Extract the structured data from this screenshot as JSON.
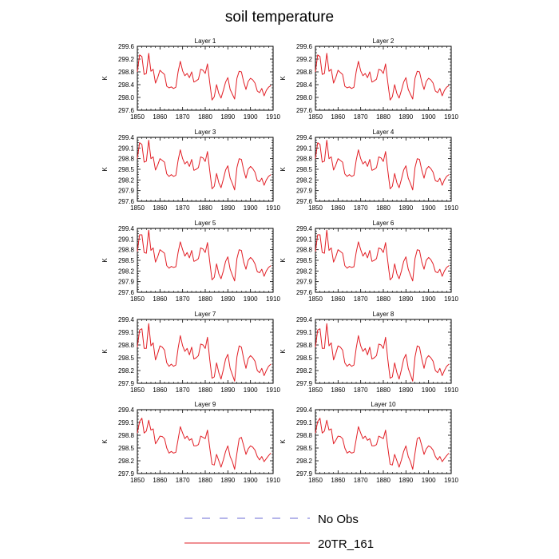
{
  "title": "soil temperature",
  "legend": [
    {
      "label": "No Obs",
      "color": "#6b6bd6",
      "style": "dashed"
    },
    {
      "label": "20TR_161",
      "color": "#e21f26",
      "style": "solid"
    }
  ],
  "colors": {
    "line": "#e21f26",
    "axis": "#000000",
    "dash": "#6b6bd6"
  },
  "chart_data": [
    {
      "type": "line",
      "title": "Layer 1",
      "ylabel": "K",
      "xlim": [
        1850,
        1910
      ],
      "ylim": [
        297.6,
        299.6
      ],
      "xticks": [
        1850,
        1860,
        1870,
        1880,
        1890,
        1900,
        1910
      ],
      "yticks": [
        297.6,
        298.0,
        298.4,
        298.8,
        299.2,
        299.6
      ],
      "ytick_labels": [
        "297.6",
        "298.0",
        "298.4",
        "298.8",
        "299.2",
        "299.6"
      ],
      "series": [
        {
          "name": "20TR_161",
          "x_start": 1850,
          "x_step": 1,
          "values": [
            298.8,
            299.33,
            299.28,
            298.72,
            298.75,
            299.38,
            298.82,
            298.88,
            298.45,
            298.62,
            298.85,
            298.78,
            298.72,
            298.35,
            298.3,
            298.33,
            298.28,
            298.32,
            298.8,
            299.13,
            298.83,
            298.68,
            298.75,
            298.62,
            298.8,
            298.48,
            298.52,
            298.57,
            298.88,
            298.85,
            298.75,
            299.05,
            298.45,
            297.92,
            298.02,
            298.4,
            298.12,
            297.98,
            298.22,
            298.48,
            298.62,
            298.25,
            298.1,
            297.95,
            298.6,
            298.82,
            298.8,
            298.48,
            298.25,
            298.5,
            298.6,
            298.55,
            298.45,
            298.2,
            298.15,
            298.28,
            298.05,
            298.22,
            298.32,
            298.37
          ]
        }
      ]
    },
    {
      "type": "line",
      "title": "Layer 2",
      "ylabel": "K",
      "xlim": [
        1850,
        1910
      ],
      "ylim": [
        297.6,
        299.6
      ],
      "xticks": [
        1850,
        1860,
        1870,
        1880,
        1890,
        1900,
        1910
      ],
      "yticks": [
        297.6,
        298.0,
        298.4,
        298.8,
        299.2,
        299.6
      ],
      "ytick_labels": [
        "297.6",
        "298.0",
        "298.4",
        "298.8",
        "299.2",
        "299.6"
      ],
      "series": [
        {
          "name": "20TR_161",
          "x_start": 1850,
          "x_step": 1,
          "values": [
            298.8,
            299.33,
            299.28,
            298.72,
            298.75,
            299.38,
            298.82,
            298.88,
            298.45,
            298.62,
            298.85,
            298.78,
            298.72,
            298.35,
            298.3,
            298.33,
            298.28,
            298.32,
            298.8,
            299.13,
            298.83,
            298.68,
            298.75,
            298.62,
            298.8,
            298.48,
            298.52,
            298.57,
            298.88,
            298.85,
            298.75,
            299.05,
            298.45,
            297.92,
            298.02,
            298.4,
            298.12,
            297.98,
            298.22,
            298.48,
            298.62,
            298.25,
            298.1,
            297.95,
            298.6,
            298.82,
            298.8,
            298.48,
            298.25,
            298.5,
            298.6,
            298.55,
            298.45,
            298.2,
            298.15,
            298.28,
            298.05,
            298.22,
            298.32,
            298.37
          ]
        }
      ]
    },
    {
      "type": "line",
      "title": "Layer 3",
      "ylabel": "K",
      "xlim": [
        1850,
        1910
      ],
      "ylim": [
        297.6,
        299.4
      ],
      "xticks": [
        1850,
        1860,
        1870,
        1880,
        1890,
        1900,
        1910
      ],
      "yticks": [
        297.6,
        297.9,
        298.2,
        298.5,
        298.8,
        299.1,
        299.4
      ],
      "ytick_labels": [
        "297.6",
        "297.9",
        "298.2",
        "298.5",
        "298.8",
        "299.1",
        "299.4"
      ],
      "series": [
        {
          "name": "20TR_161",
          "x_start": 1850,
          "x_step": 1,
          "values": [
            298.8,
            299.25,
            299.2,
            298.7,
            298.73,
            299.32,
            298.8,
            298.85,
            298.48,
            298.62,
            298.8,
            298.75,
            298.7,
            298.37,
            298.3,
            298.35,
            298.3,
            298.33,
            298.75,
            299.05,
            298.8,
            298.65,
            298.72,
            298.58,
            298.78,
            298.47,
            298.5,
            298.55,
            298.85,
            298.82,
            298.72,
            299.0,
            298.45,
            297.95,
            298.02,
            298.38,
            298.12,
            297.98,
            298.22,
            298.48,
            298.6,
            298.25,
            298.1,
            297.92,
            298.55,
            298.8,
            298.78,
            298.47,
            298.25,
            298.5,
            298.58,
            298.52,
            298.42,
            298.18,
            298.15,
            298.25,
            298.05,
            298.2,
            298.3,
            298.35
          ]
        }
      ]
    },
    {
      "type": "line",
      "title": "Layer 4",
      "ylabel": "K",
      "xlim": [
        1850,
        1910
      ],
      "ylim": [
        297.6,
        299.4
      ],
      "xticks": [
        1850,
        1860,
        1870,
        1880,
        1890,
        1900,
        1910
      ],
      "yticks": [
        297.6,
        297.9,
        298.2,
        298.5,
        298.8,
        299.1,
        299.4
      ],
      "ytick_labels": [
        "297.6",
        "297.9",
        "298.2",
        "298.5",
        "298.8",
        "299.1",
        "299.4"
      ],
      "series": [
        {
          "name": "20TR_161",
          "x_start": 1850,
          "x_step": 1,
          "values": [
            298.8,
            299.25,
            299.2,
            298.7,
            298.73,
            299.32,
            298.8,
            298.85,
            298.48,
            298.62,
            298.8,
            298.75,
            298.7,
            298.37,
            298.3,
            298.35,
            298.3,
            298.33,
            298.75,
            299.05,
            298.8,
            298.65,
            298.72,
            298.58,
            298.78,
            298.47,
            298.5,
            298.55,
            298.85,
            298.82,
            298.72,
            299.0,
            298.45,
            297.95,
            298.02,
            298.38,
            298.12,
            297.98,
            298.22,
            298.48,
            298.6,
            298.25,
            298.1,
            297.92,
            298.55,
            298.8,
            298.78,
            298.47,
            298.25,
            298.5,
            298.58,
            298.52,
            298.42,
            298.18,
            298.15,
            298.25,
            298.05,
            298.2,
            298.3,
            298.35
          ]
        }
      ]
    },
    {
      "type": "line",
      "title": "Layer 5",
      "ylabel": "K",
      "xlim": [
        1850,
        1910
      ],
      "ylim": [
        297.6,
        299.4
      ],
      "xticks": [
        1850,
        1860,
        1870,
        1880,
        1890,
        1900,
        1910
      ],
      "yticks": [
        297.6,
        297.9,
        298.2,
        298.5,
        298.8,
        299.1,
        299.4
      ],
      "ytick_labels": [
        "297.6",
        "297.9",
        "298.2",
        "298.5",
        "298.8",
        "299.1",
        "299.4"
      ],
      "series": [
        {
          "name": "20TR_161",
          "x_start": 1850,
          "x_step": 1,
          "values": [
            298.75,
            299.22,
            299.22,
            298.72,
            298.7,
            299.35,
            298.78,
            298.85,
            298.45,
            298.6,
            298.8,
            298.75,
            298.7,
            298.35,
            298.28,
            298.33,
            298.3,
            298.32,
            298.72,
            299.02,
            298.8,
            298.62,
            298.72,
            298.57,
            298.78,
            298.47,
            298.5,
            298.55,
            298.85,
            298.82,
            298.72,
            299.0,
            298.45,
            297.95,
            298.02,
            298.4,
            298.12,
            297.98,
            298.2,
            298.47,
            298.6,
            298.25,
            298.08,
            297.92,
            298.55,
            298.8,
            298.78,
            298.45,
            298.25,
            298.5,
            298.58,
            298.52,
            298.4,
            298.18,
            298.15,
            298.25,
            298.05,
            298.2,
            298.3,
            298.35
          ]
        }
      ]
    },
    {
      "type": "line",
      "title": "Layer 6",
      "ylabel": "K",
      "xlim": [
        1850,
        1910
      ],
      "ylim": [
        297.6,
        299.4
      ],
      "xticks": [
        1850,
        1860,
        1870,
        1880,
        1890,
        1900,
        1910
      ],
      "yticks": [
        297.6,
        297.9,
        298.2,
        298.5,
        298.8,
        299.1,
        299.4
      ],
      "ytick_labels": [
        "297.6",
        "297.9",
        "298.2",
        "298.5",
        "298.8",
        "299.1",
        "299.4"
      ],
      "series": [
        {
          "name": "20TR_161",
          "x_start": 1850,
          "x_step": 1,
          "values": [
            298.75,
            299.22,
            299.22,
            298.72,
            298.7,
            299.35,
            298.78,
            298.85,
            298.45,
            298.6,
            298.8,
            298.75,
            298.7,
            298.35,
            298.28,
            298.33,
            298.3,
            298.32,
            298.72,
            299.02,
            298.8,
            298.62,
            298.72,
            298.57,
            298.78,
            298.47,
            298.5,
            298.55,
            298.85,
            298.82,
            298.72,
            299.0,
            298.45,
            297.95,
            298.02,
            298.4,
            298.12,
            297.98,
            298.2,
            298.47,
            298.6,
            298.25,
            298.08,
            297.92,
            298.55,
            298.8,
            298.78,
            298.45,
            298.25,
            298.5,
            298.58,
            298.52,
            298.4,
            298.18,
            298.15,
            298.25,
            298.05,
            298.2,
            298.3,
            298.35
          ]
        }
      ]
    },
    {
      "type": "line",
      "title": "Layer 7",
      "ylabel": "K",
      "xlim": [
        1850,
        1910
      ],
      "ylim": [
        297.9,
        299.4
      ],
      "xticks": [
        1850,
        1860,
        1870,
        1880,
        1890,
        1900,
        1910
      ],
      "yticks": [
        297.9,
        298.2,
        298.5,
        298.8,
        299.1,
        299.4
      ],
      "ytick_labels": [
        "297.9",
        "298.2",
        "298.5",
        "298.8",
        "299.1",
        "299.4"
      ],
      "series": [
        {
          "name": "20TR_161",
          "x_start": 1850,
          "x_step": 1,
          "values": [
            298.75,
            299.15,
            299.18,
            298.72,
            298.72,
            299.3,
            298.78,
            298.85,
            298.45,
            298.6,
            298.78,
            298.75,
            298.68,
            298.38,
            298.3,
            298.35,
            298.3,
            298.33,
            298.72,
            299.02,
            298.78,
            298.65,
            298.72,
            298.57,
            298.75,
            298.47,
            298.5,
            298.55,
            298.82,
            298.8,
            298.72,
            298.98,
            298.45,
            298.02,
            298.05,
            298.38,
            298.15,
            298.0,
            298.22,
            298.47,
            298.58,
            298.25,
            298.1,
            297.95,
            298.52,
            298.78,
            298.75,
            298.47,
            298.25,
            298.48,
            298.55,
            298.5,
            298.42,
            298.2,
            298.15,
            298.25,
            298.08,
            298.2,
            298.3,
            298.35
          ]
        }
      ]
    },
    {
      "type": "line",
      "title": "Layer 8",
      "ylabel": "K",
      "xlim": [
        1850,
        1910
      ],
      "ylim": [
        297.9,
        299.4
      ],
      "xticks": [
        1850,
        1860,
        1870,
        1880,
        1890,
        1900,
        1910
      ],
      "yticks": [
        297.9,
        298.2,
        298.5,
        298.8,
        299.1,
        299.4
      ],
      "ytick_labels": [
        "297.9",
        "298.2",
        "298.5",
        "298.8",
        "299.1",
        "299.4"
      ],
      "series": [
        {
          "name": "20TR_161",
          "x_start": 1850,
          "x_step": 1,
          "values": [
            298.75,
            299.15,
            299.18,
            298.72,
            298.72,
            299.3,
            298.78,
            298.85,
            298.45,
            298.6,
            298.78,
            298.75,
            298.68,
            298.38,
            298.3,
            298.35,
            298.3,
            298.33,
            298.72,
            299.02,
            298.78,
            298.65,
            298.72,
            298.57,
            298.75,
            298.47,
            298.5,
            298.55,
            298.82,
            298.8,
            298.72,
            298.98,
            298.45,
            298.02,
            298.05,
            298.38,
            298.15,
            298.0,
            298.22,
            298.47,
            298.58,
            298.25,
            298.1,
            297.95,
            298.52,
            298.78,
            298.75,
            298.47,
            298.25,
            298.48,
            298.55,
            298.5,
            298.42,
            298.2,
            298.15,
            298.25,
            298.08,
            298.2,
            298.3,
            298.35
          ]
        }
      ]
    },
    {
      "type": "line",
      "title": "Layer 9",
      "ylabel": "K",
      "xlim": [
        1850,
        1910
      ],
      "ylim": [
        297.9,
        299.4
      ],
      "xticks": [
        1850,
        1860,
        1870,
        1880,
        1890,
        1900,
        1910
      ],
      "yticks": [
        297.9,
        298.2,
        298.5,
        298.8,
        299.1,
        299.4
      ],
      "ytick_labels": [
        "297.9",
        "298.2",
        "298.5",
        "298.8",
        "299.1",
        "299.4"
      ],
      "series": [
        {
          "name": "20TR_161",
          "x_start": 1850,
          "x_step": 1,
          "values": [
            298.85,
            299.12,
            299.2,
            298.85,
            298.9,
            299.15,
            298.92,
            298.95,
            298.6,
            298.68,
            298.78,
            298.77,
            298.72,
            298.5,
            298.38,
            298.42,
            298.38,
            298.4,
            298.7,
            299.0,
            298.85,
            298.72,
            298.78,
            298.68,
            298.72,
            298.55,
            298.55,
            298.58,
            298.78,
            298.75,
            298.72,
            298.92,
            298.5,
            298.12,
            298.1,
            298.35,
            298.2,
            298.05,
            298.22,
            298.42,
            298.55,
            298.3,
            298.18,
            298.0,
            298.38,
            298.72,
            298.75,
            298.55,
            298.35,
            298.48,
            298.55,
            298.52,
            298.45,
            298.3,
            298.22,
            298.3,
            298.18,
            298.25,
            298.32,
            298.38
          ]
        }
      ]
    },
    {
      "type": "line",
      "title": "Layer 10",
      "ylabel": "K",
      "xlim": [
        1850,
        1910
      ],
      "ylim": [
        297.9,
        299.4
      ],
      "xticks": [
        1850,
        1860,
        1870,
        1880,
        1890,
        1900,
        1910
      ],
      "yticks": [
        297.9,
        298.2,
        298.5,
        298.8,
        299.1,
        299.4
      ],
      "ytick_labels": [
        "297.9",
        "298.2",
        "298.5",
        "298.8",
        "299.1",
        "299.4"
      ],
      "series": [
        {
          "name": "20TR_161",
          "x_start": 1850,
          "x_step": 1,
          "values": [
            298.85,
            299.12,
            299.2,
            298.85,
            298.9,
            299.15,
            298.92,
            298.95,
            298.6,
            298.68,
            298.78,
            298.77,
            298.72,
            298.5,
            298.38,
            298.42,
            298.38,
            298.4,
            298.7,
            299.0,
            298.85,
            298.72,
            298.78,
            298.68,
            298.72,
            298.55,
            298.55,
            298.58,
            298.78,
            298.75,
            298.72,
            298.92,
            298.5,
            298.12,
            298.1,
            298.35,
            298.2,
            298.05,
            298.22,
            298.42,
            298.55,
            298.3,
            298.18,
            298.0,
            298.38,
            298.72,
            298.75,
            298.55,
            298.35,
            298.48,
            298.55,
            298.52,
            298.45,
            298.3,
            298.22,
            298.3,
            298.18,
            298.25,
            298.32,
            298.38
          ]
        }
      ]
    }
  ]
}
